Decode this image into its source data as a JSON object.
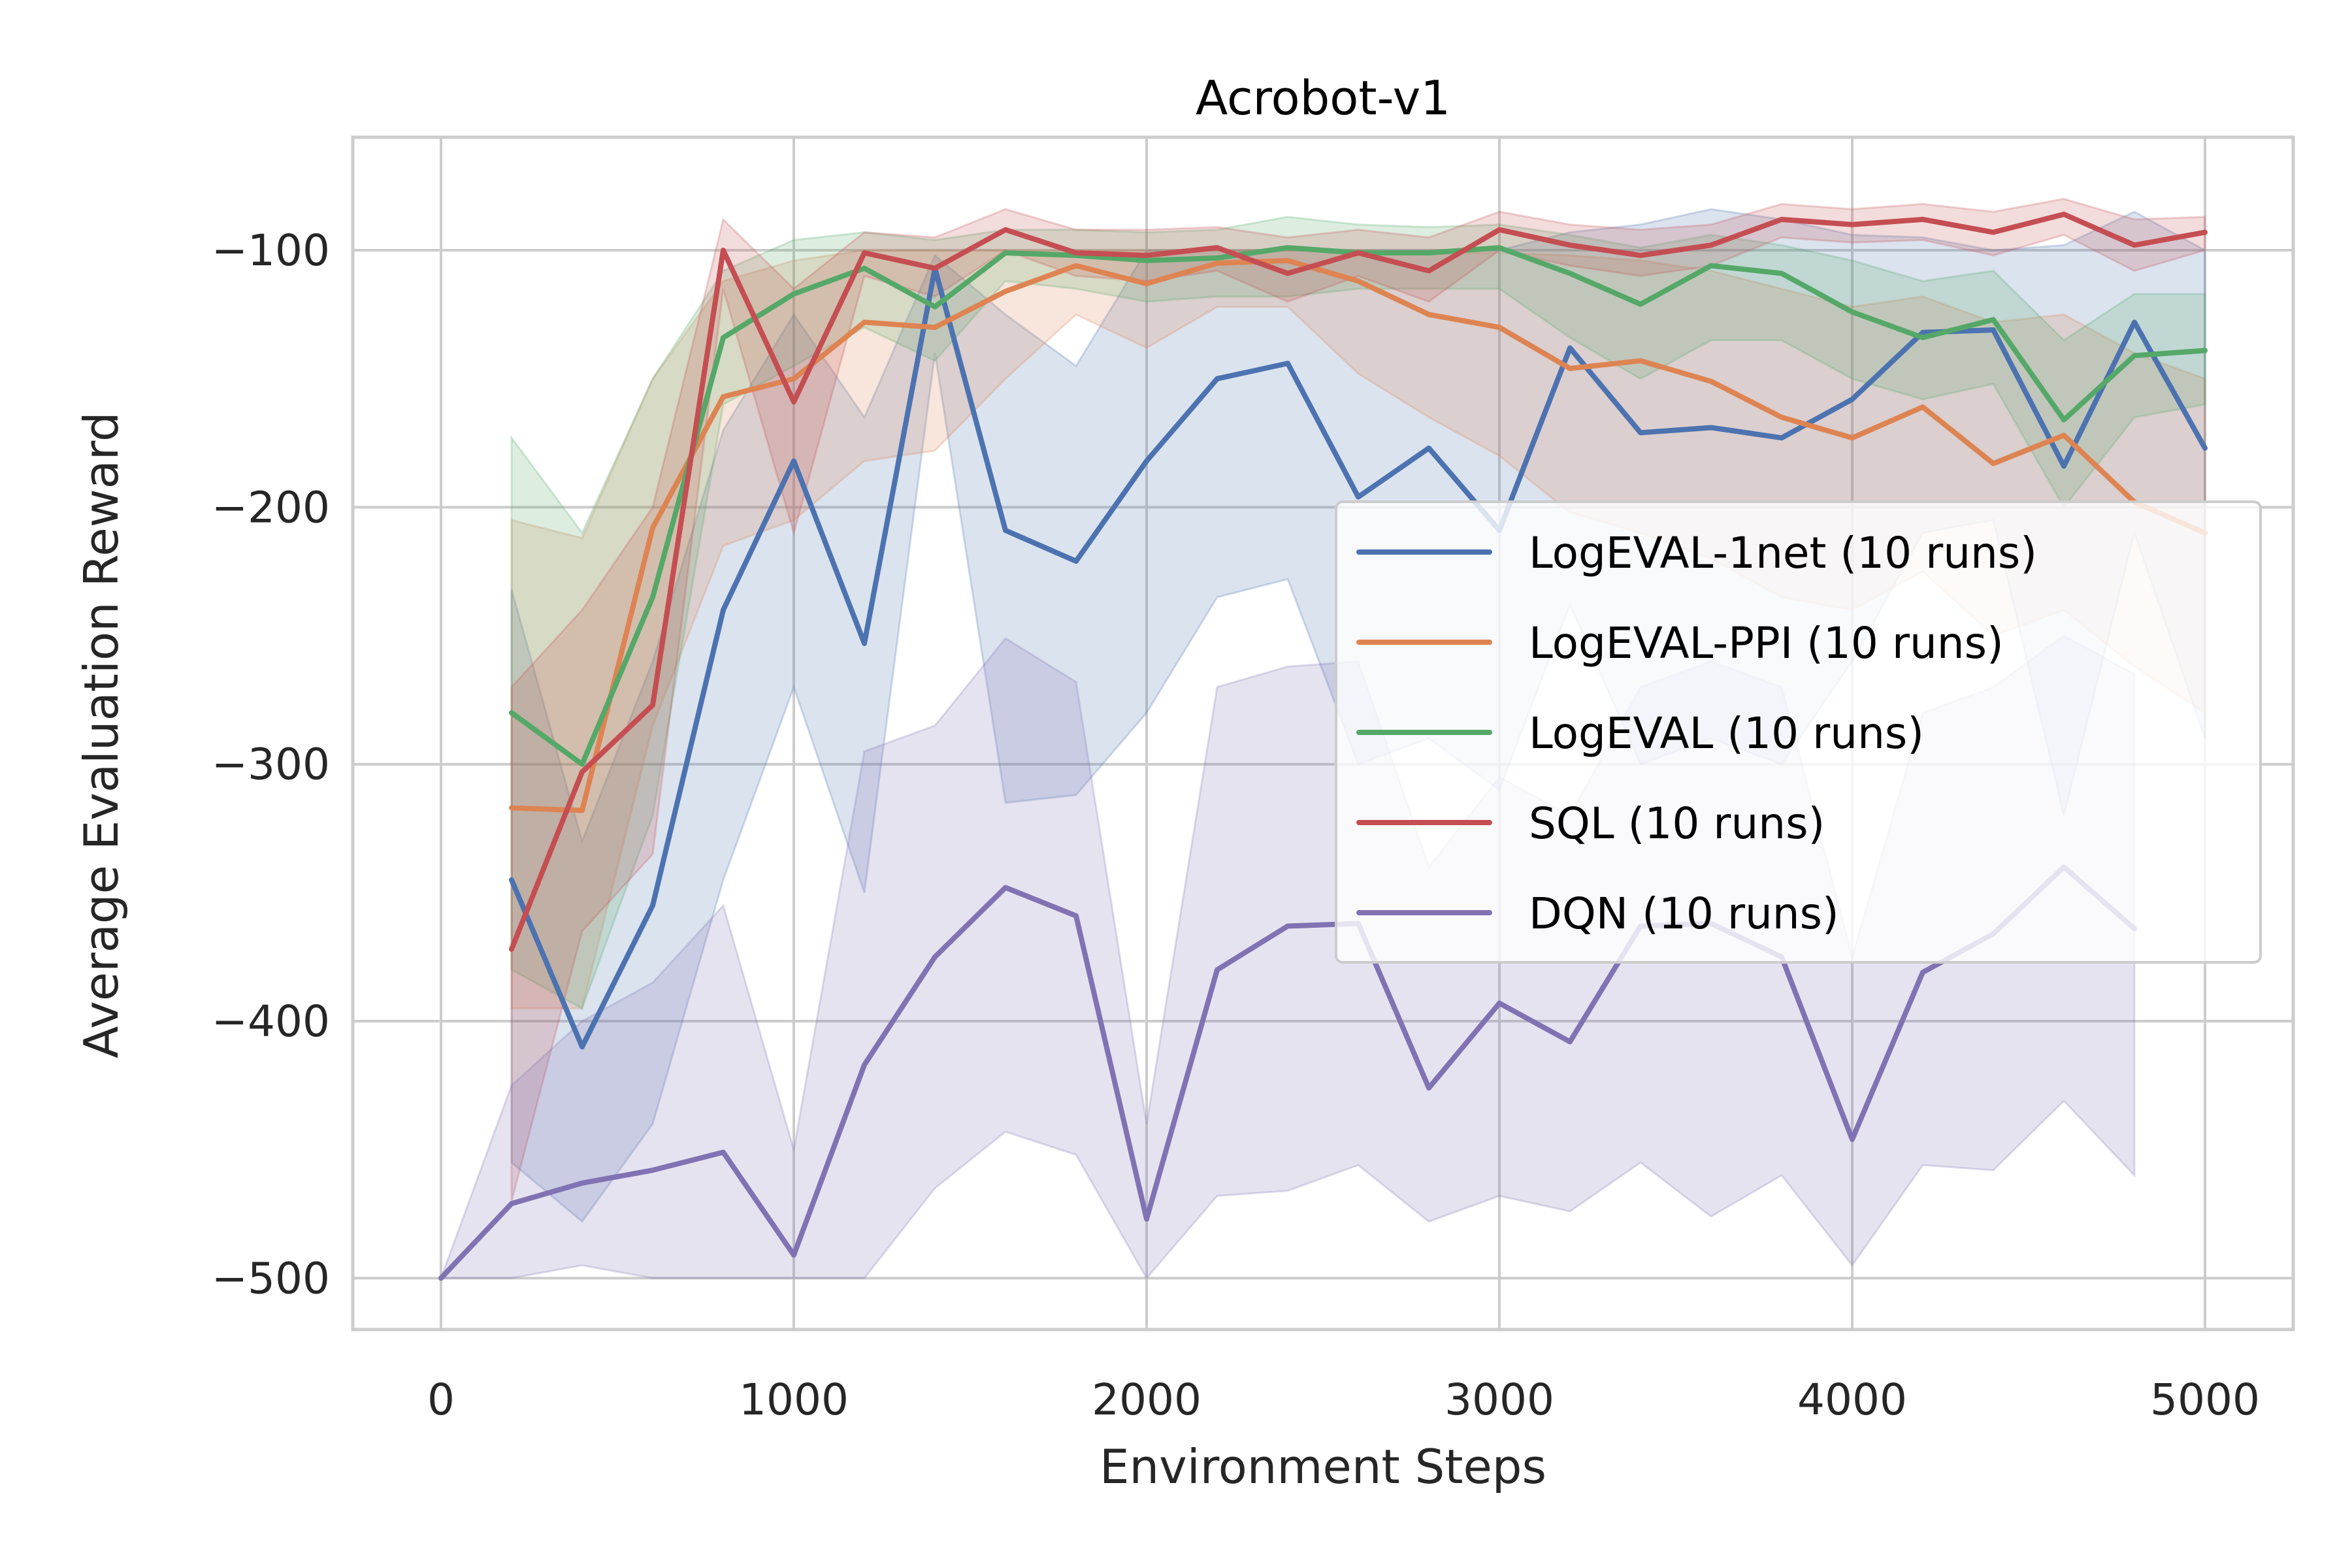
{
  "chart_data": {
    "type": "line",
    "title": "Acrobot-v1",
    "xlabel": "Environment Steps",
    "ylabel": "Average Evaluation Reward",
    "xlim": [
      -250,
      5250
    ],
    "ylim": [
      -520,
      -56
    ],
    "xticks": [
      0,
      1000,
      2000,
      3000,
      4000,
      5000
    ],
    "xtick_labels": [
      "0",
      "1000",
      "2000",
      "3000",
      "4000",
      "5000"
    ],
    "yticks": [
      -500,
      -400,
      -300,
      -200,
      -100
    ],
    "ytick_labels": [
      "−500",
      "−400",
      "−300",
      "−200",
      "−100"
    ],
    "grid": true,
    "legend_position": "center-right",
    "series": [
      {
        "name": "LogEVAL-1net (10 runs)",
        "color": "#4c72b0",
        "x": [
          200,
          400,
          600,
          800,
          1000,
          1200,
          1400,
          1600,
          1800,
          2000,
          2200,
          2400,
          2600,
          2800,
          3000,
          3200,
          3400,
          3600,
          3800,
          4000,
          4200,
          4400,
          4600,
          4800,
          5000
        ],
        "y": [
          -345,
          -410,
          -355,
          -240,
          -182,
          -253,
          -107,
          -209,
          -221,
          -182,
          -150,
          -144,
          -196,
          -177,
          -209,
          -138,
          -171,
          -169,
          -173,
          -158,
          -132,
          -131,
          -184,
          -128,
          -177
        ],
        "upper": [
          -232,
          -330,
          -260,
          -170,
          -125,
          -165,
          -102,
          -125,
          -145,
          -100,
          -100,
          -100,
          -100,
          -100,
          -100,
          -93,
          -90,
          -84,
          -88,
          -94,
          -95,
          -100,
          -98,
          -85,
          -100
        ],
        "lower": [
          -455,
          -478,
          -440,
          -345,
          -270,
          -350,
          -140,
          -315,
          -312,
          -280,
          -235,
          -228,
          -300,
          -290,
          -310,
          -238,
          -300,
          -290,
          -300,
          -260,
          -210,
          -205,
          -320,
          -210,
          -290
        ]
      },
      {
        "name": "LogEVAL-PPI (10 runs)",
        "color": "#dd8452",
        "x": [
          200,
          400,
          600,
          800,
          1000,
          1200,
          1400,
          1600,
          1800,
          2000,
          2200,
          2400,
          2600,
          2800,
          3000,
          3200,
          3400,
          3600,
          3800,
          4000,
          4200,
          4400,
          4600,
          4800,
          5000
        ],
        "y": [
          -317,
          -318,
          -208,
          -157,
          -150,
          -128,
          -130,
          -116,
          -106,
          -113,
          -105,
          -104,
          -112,
          -125,
          -130,
          -146,
          -143,
          -151,
          -165,
          -173,
          -161,
          -183,
          -172,
          -198,
          -210
        ],
        "upper": [
          -205,
          -212,
          -150,
          -112,
          -104,
          -100,
          -100,
          -100,
          -100,
          -100,
          -100,
          -100,
          -100,
          -101,
          -101,
          -102,
          -104,
          -108,
          -115,
          -122,
          -118,
          -128,
          -125,
          -140,
          -150
        ],
        "lower": [
          -395,
          -395,
          -285,
          -215,
          -205,
          -182,
          -178,
          -150,
          -125,
          -138,
          -122,
          -122,
          -148,
          -165,
          -180,
          -202,
          -210,
          -220,
          -235,
          -240,
          -225,
          -250,
          -240,
          -262,
          -280
        ]
      },
      {
        "name": "LogEVAL (10 runs)",
        "color": "#55a868",
        "x": [
          200,
          400,
          600,
          800,
          1000,
          1200,
          1400,
          1600,
          1800,
          2000,
          2200,
          2400,
          2600,
          2800,
          3000,
          3200,
          3400,
          3600,
          3800,
          4000,
          4200,
          4400,
          4600,
          4800,
          5000
        ],
        "y": [
          -280,
          -300,
          -235,
          -134,
          -117,
          -107,
          -122,
          -101,
          -102,
          -104,
          -103,
          -99,
          -101,
          -101,
          -99,
          -109,
          -121,
          -106,
          -109,
          -124,
          -134,
          -127,
          -166,
          -141,
          -139
        ],
        "upper": [
          -173,
          -210,
          -150,
          -108,
          -96,
          -93,
          -96,
          -92,
          -92,
          -93,
          -92,
          -87,
          -90,
          -91,
          -90,
          -94,
          -99,
          -94,
          -98,
          -104,
          -112,
          -108,
          -135,
          -117,
          -117
        ],
        "lower": [
          -380,
          -395,
          -320,
          -160,
          -145,
          -130,
          -143,
          -112,
          -115,
          -120,
          -118,
          -118,
          -115,
          -115,
          -115,
          -134,
          -150,
          -135,
          -135,
          -150,
          -158,
          -152,
          -200,
          -165,
          -160
        ]
      },
      {
        "name": "SQL (10 runs)",
        "color": "#c44e52",
        "x": [
          200,
          400,
          600,
          800,
          1000,
          1200,
          1400,
          1600,
          1800,
          2000,
          2200,
          2400,
          2600,
          2800,
          3000,
          3200,
          3400,
          3600,
          3800,
          4000,
          4200,
          4400,
          4600,
          4800,
          5000
        ],
        "y": [
          -372,
          -303,
          -277,
          -100,
          -159,
          -101,
          -107,
          -92,
          -101,
          -102,
          -99,
          -109,
          -101,
          -108,
          -92,
          -98,
          -102,
          -98,
          -88,
          -90,
          -88,
          -93,
          -86,
          -98,
          -93
        ],
        "upper": [
          -270,
          -240,
          -200,
          -88,
          -115,
          -93,
          -95,
          -84,
          -92,
          -92,
          -91,
          -95,
          -92,
          -95,
          -85,
          -90,
          -92,
          -90,
          -82,
          -84,
          -82,
          -85,
          -80,
          -88,
          -87
        ],
        "lower": [
          -470,
          -365,
          -335,
          -115,
          -210,
          -110,
          -118,
          -100,
          -110,
          -112,
          -108,
          -120,
          -110,
          -120,
          -100,
          -106,
          -110,
          -106,
          -95,
          -97,
          -96,
          -102,
          -94,
          -108,
          -100
        ]
      },
      {
        "name": "DQN (10 runs)",
        "color": "#8172b3",
        "x": [
          0,
          200,
          400,
          600,
          800,
          1000,
          1200,
          1400,
          1600,
          1800,
          2000,
          2200,
          2400,
          2600,
          2800,
          3000,
          3200,
          3400,
          3600,
          3800,
          4000,
          4200,
          4400,
          4600,
          4800
        ],
        "y": [
          -500,
          -471,
          -463,
          -458,
          -451,
          -491,
          -417,
          -375,
          -348,
          -359,
          -477,
          -380,
          -363,
          -362,
          -426,
          -393,
          -408,
          -363,
          -362,
          -375,
          -446,
          -381,
          -366,
          -340,
          -364
        ],
        "upper": [
          -500,
          -425,
          -400,
          -385,
          -355,
          -450,
          -295,
          -285,
          -251,
          -268,
          -440,
          -270,
          -262,
          -260,
          -340,
          -305,
          -320,
          -270,
          -260,
          -270,
          -375,
          -280,
          -270,
          -250,
          -265
        ],
        "lower": [
          -500,
          -500,
          -495,
          -500,
          -500,
          -500,
          -500,
          -465,
          -443,
          -452,
          -500,
          -468,
          -466,
          -456,
          -478,
          -468,
          -474,
          -455,
          -476,
          -460,
          -495,
          -456,
          -458,
          -431,
          -460
        ]
      }
    ]
  }
}
